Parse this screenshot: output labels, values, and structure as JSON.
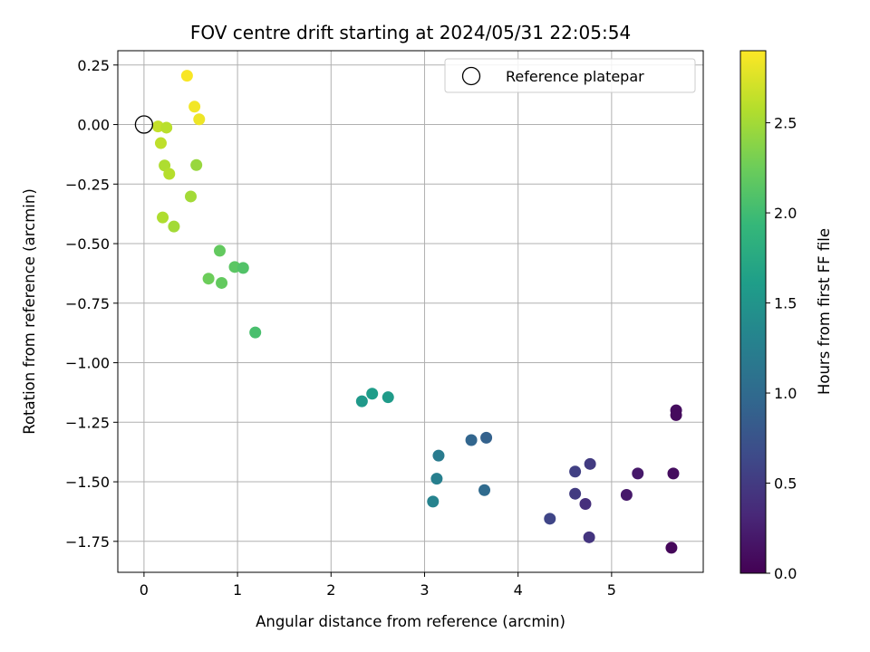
{
  "chart_data": {
    "type": "scatter",
    "title": "FOV centre drift starting at 2024/05/31 22:05:54",
    "xlabel": "Angular distance from reference (arcmin)",
    "ylabel": "Rotation from reference (arcmin)",
    "xlim": [
      -0.28,
      5.98
    ],
    "ylim": [
      -1.88,
      0.31
    ],
    "xticks": [
      0,
      1,
      2,
      3,
      4,
      5
    ],
    "xtick_labels": [
      "0",
      "1",
      "2",
      "3",
      "4",
      "5"
    ],
    "yticks": [
      0.25,
      0.0,
      -0.25,
      -0.5,
      -0.75,
      -1.0,
      -1.25,
      -1.5,
      -1.75
    ],
    "ytick_labels": [
      "0.25",
      "0.00",
      "−0.25",
      "−0.50",
      "−0.75",
      "−1.00",
      "−1.25",
      "−1.50",
      "−1.75"
    ],
    "grid": true,
    "legend": {
      "placement": "top-right",
      "entries": [
        {
          "label": "Reference platepar",
          "marker": "hollow-circle"
        }
      ]
    },
    "reference_point": {
      "x": 0.0,
      "y": 0.0
    },
    "colorbar": {
      "label": "Hours from first FF file",
      "colormap": "viridis",
      "range": [
        0.0,
        2.9
      ],
      "ticks": [
        0.0,
        0.5,
        1.0,
        1.5,
        2.0,
        2.5
      ],
      "tick_labels": [
        "0.0",
        "0.5",
        "1.0",
        "1.5",
        "2.0",
        "2.5"
      ]
    },
    "points": [
      {
        "x": 0.46,
        "y": 0.205,
        "c": 2.88
      },
      {
        "x": 0.54,
        "y": 0.075,
        "c": 2.85
      },
      {
        "x": 0.59,
        "y": 0.022,
        "c": 2.83
      },
      {
        "x": 0.15,
        "y": -0.008,
        "c": 2.65
      },
      {
        "x": 0.24,
        "y": -0.013,
        "c": 2.6
      },
      {
        "x": 0.18,
        "y": -0.078,
        "c": 2.62
      },
      {
        "x": 0.22,
        "y": -0.172,
        "c": 2.55
      },
      {
        "x": 0.27,
        "y": -0.207,
        "c": 2.58
      },
      {
        "x": 0.56,
        "y": -0.17,
        "c": 2.45
      },
      {
        "x": 0.5,
        "y": -0.302,
        "c": 2.5
      },
      {
        "x": 0.2,
        "y": -0.39,
        "c": 2.55
      },
      {
        "x": 0.32,
        "y": -0.428,
        "c": 2.5
      },
      {
        "x": 0.81,
        "y": -0.53,
        "c": 2.2
      },
      {
        "x": 0.69,
        "y": -0.647,
        "c": 2.25
      },
      {
        "x": 0.83,
        "y": -0.665,
        "c": 2.2
      },
      {
        "x": 0.97,
        "y": -0.598,
        "c": 2.15
      },
      {
        "x": 1.06,
        "y": -0.602,
        "c": 2.1
      },
      {
        "x": 1.19,
        "y": -0.873,
        "c": 2.05
      },
      {
        "x": 2.33,
        "y": -1.162,
        "c": 1.55
      },
      {
        "x": 2.44,
        "y": -1.13,
        "c": 1.6
      },
      {
        "x": 2.61,
        "y": -1.145,
        "c": 1.58
      },
      {
        "x": 3.15,
        "y": -1.39,
        "c": 1.2
      },
      {
        "x": 3.13,
        "y": -1.487,
        "c": 1.25
      },
      {
        "x": 3.09,
        "y": -1.583,
        "c": 1.3
      },
      {
        "x": 3.5,
        "y": -1.325,
        "c": 0.95
      },
      {
        "x": 3.66,
        "y": -1.315,
        "c": 0.9
      },
      {
        "x": 3.64,
        "y": -1.535,
        "c": 1.0
      },
      {
        "x": 4.61,
        "y": -1.457,
        "c": 0.55
      },
      {
        "x": 4.77,
        "y": -1.425,
        "c": 0.5
      },
      {
        "x": 4.61,
        "y": -1.55,
        "c": 0.5
      },
      {
        "x": 4.72,
        "y": -1.593,
        "c": 0.4
      },
      {
        "x": 4.34,
        "y": -1.655,
        "c": 0.6
      },
      {
        "x": 4.76,
        "y": -1.733,
        "c": 0.45
      },
      {
        "x": 5.28,
        "y": -1.465,
        "c": 0.2
      },
      {
        "x": 5.16,
        "y": -1.555,
        "c": 0.2
      },
      {
        "x": 5.66,
        "y": -1.465,
        "c": 0.1
      },
      {
        "x": 5.64,
        "y": -1.777,
        "c": 0.05
      },
      {
        "x": 5.69,
        "y": -1.2,
        "c": 0.1
      },
      {
        "x": 5.69,
        "y": -1.22,
        "c": 0.08
      }
    ]
  }
}
